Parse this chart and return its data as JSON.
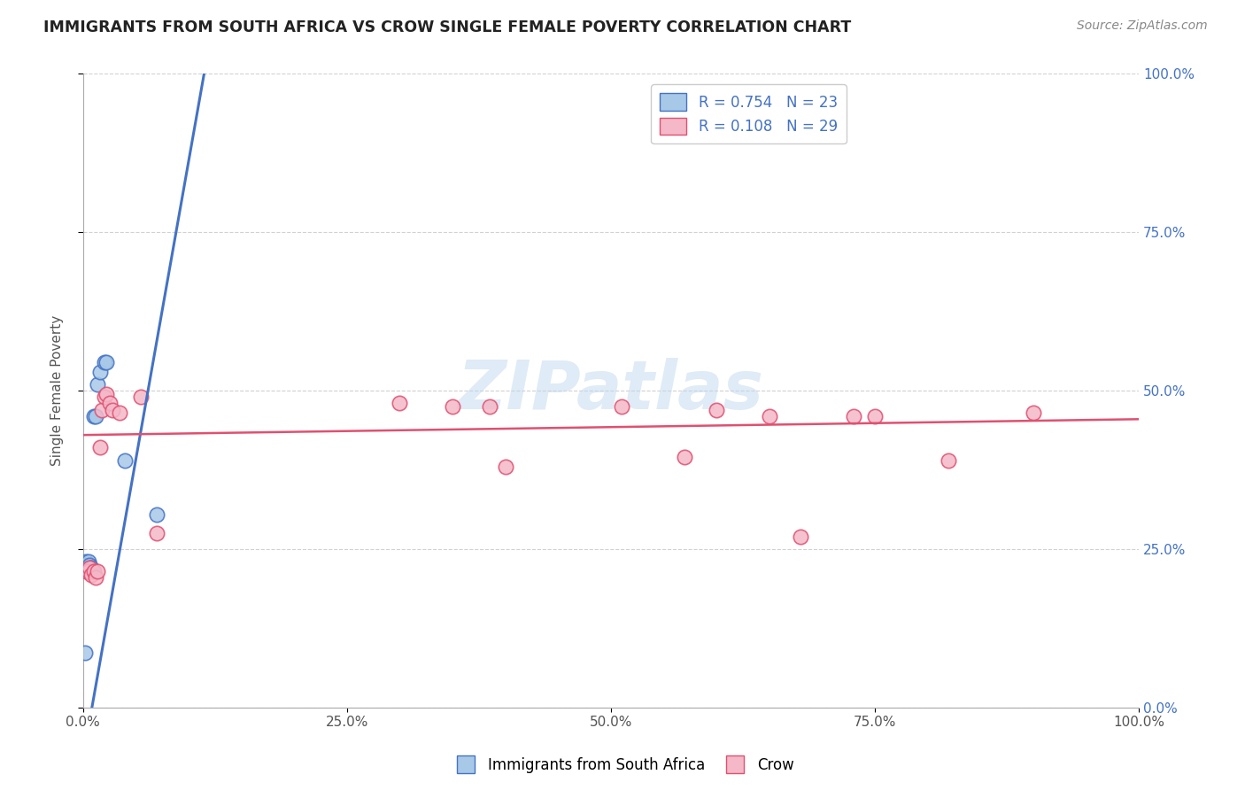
{
  "title": "IMMIGRANTS FROM SOUTH AFRICA VS CROW SINGLE FEMALE POVERTY CORRELATION CHART",
  "source": "Source: ZipAtlas.com",
  "ylabel": "Single Female Poverty",
  "watermark": "ZIPatlas",
  "blue_R": 0.754,
  "blue_N": 23,
  "pink_R": 0.108,
  "pink_N": 29,
  "xlim": [
    0.0,
    1.0
  ],
  "ylim": [
    0.0,
    1.0
  ],
  "xtick_vals": [
    0.0,
    0.25,
    0.5,
    0.75,
    1.0
  ],
  "xtick_labels": [
    "0.0%",
    "25.0%",
    "50.0%",
    "75.0%",
    "100.0%"
  ],
  "ytick_vals": [
    0.0,
    0.25,
    0.5,
    0.75,
    1.0
  ],
  "ytick_labels": [
    "0.0%",
    "25.0%",
    "50.0%",
    "75.0%",
    "100.0%"
  ],
  "blue_scatter_x": [
    0.002,
    0.003,
    0.003,
    0.004,
    0.004,
    0.005,
    0.005,
    0.005,
    0.006,
    0.006,
    0.007,
    0.007,
    0.008,
    0.008,
    0.009,
    0.01,
    0.012,
    0.014,
    0.016,
    0.02,
    0.022,
    0.04,
    0.07
  ],
  "blue_scatter_y": [
    0.087,
    0.23,
    0.225,
    0.22,
    0.215,
    0.215,
    0.23,
    0.22,
    0.225,
    0.215,
    0.215,
    0.22,
    0.215,
    0.22,
    0.215,
    0.46,
    0.46,
    0.51,
    0.53,
    0.545,
    0.545,
    0.39,
    0.305
  ],
  "pink_scatter_x": [
    0.003,
    0.005,
    0.006,
    0.008,
    0.01,
    0.012,
    0.014,
    0.016,
    0.018,
    0.02,
    0.022,
    0.025,
    0.028,
    0.035,
    0.055,
    0.07,
    0.3,
    0.35,
    0.385,
    0.4,
    0.51,
    0.57,
    0.6,
    0.65,
    0.68,
    0.73,
    0.75,
    0.82,
    0.9
  ],
  "pink_scatter_y": [
    0.215,
    0.215,
    0.22,
    0.21,
    0.215,
    0.205,
    0.215,
    0.41,
    0.47,
    0.49,
    0.495,
    0.48,
    0.47,
    0.465,
    0.49,
    0.275,
    0.48,
    0.475,
    0.475,
    0.38,
    0.475,
    0.395,
    0.47,
    0.46,
    0.27,
    0.46,
    0.46,
    0.39,
    0.465
  ],
  "blue_line_x": [
    0.0,
    0.12
  ],
  "blue_line_y": [
    -0.08,
    1.05
  ],
  "pink_line_x": [
    0.0,
    1.0
  ],
  "pink_line_y": [
    0.43,
    0.455
  ],
  "blue_color": "#a8c8e8",
  "pink_color": "#f4b8c8",
  "blue_line_color": "#4472c4",
  "pink_line_color": "#e05070",
  "background_color": "#ffffff",
  "grid_color": "#cccccc"
}
